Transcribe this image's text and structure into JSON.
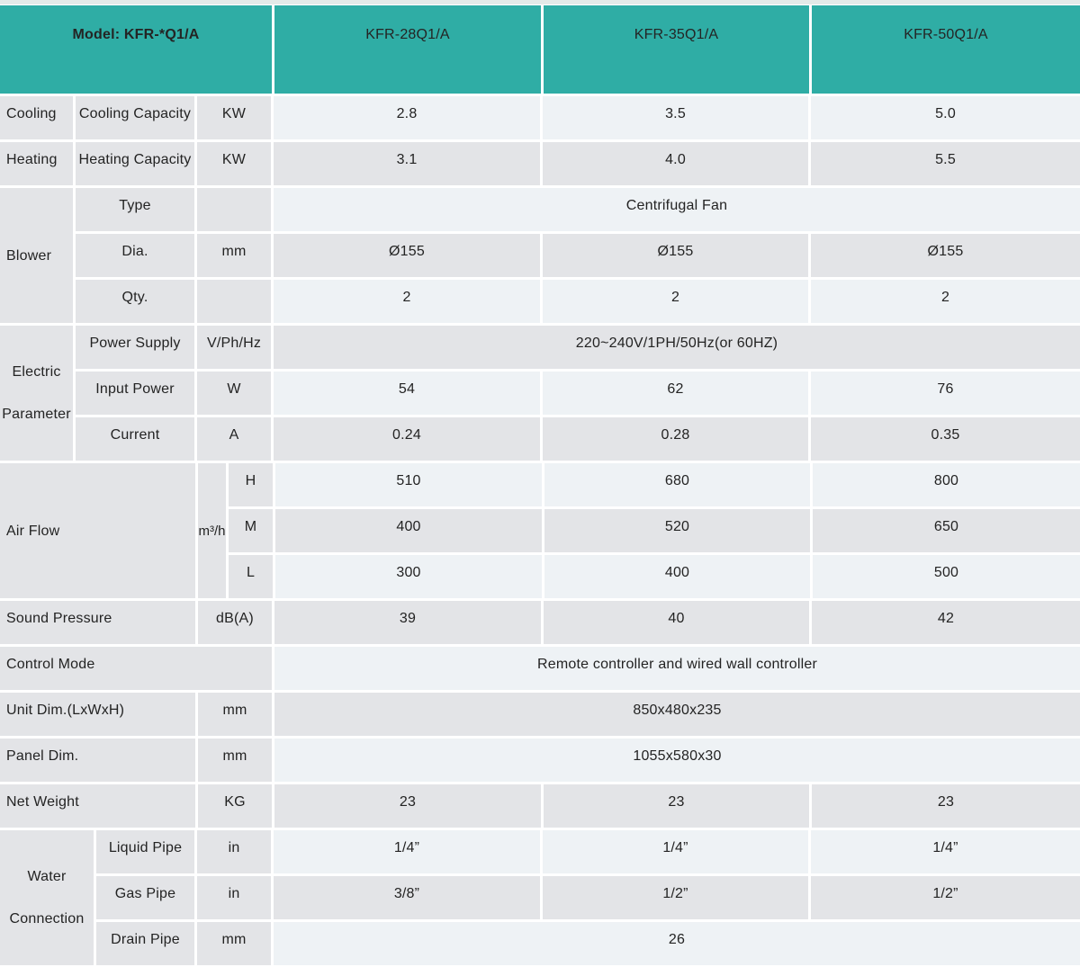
{
  "colors": {
    "teal": "#2fada5",
    "row_light": "#eef2f5",
    "row_gray": "#e3e4e7",
    "label_gray": "#e3e4e7",
    "text": "#232323",
    "top_strip": "#e3eae8"
  },
  "header": {
    "model_label": "Model: KFR-*Q1/A",
    "models": [
      "KFR-28Q1/A",
      "KFR-35Q1/A",
      "KFR-50Q1/A"
    ]
  },
  "sections": {
    "cooling": {
      "group": "Cooling",
      "sub": "Cooling Capacity",
      "unit": "KW",
      "values": [
        "2.8",
        "3.5",
        "5.0"
      ]
    },
    "heating": {
      "group": "Heating",
      "sub": "Heating Capacity",
      "unit": "KW",
      "values": [
        "3.1",
        "4.0",
        "5.5"
      ]
    },
    "blower": {
      "group": "Blower",
      "rows": [
        {
          "sub": "Type",
          "unit": "",
          "span_value": "Centrifugal Fan"
        },
        {
          "sub": "Dia.",
          "unit": "mm",
          "values": [
            "Ø155",
            "Ø155",
            "Ø155"
          ]
        },
        {
          "sub": "Qty.",
          "unit": "",
          "values": [
            "2",
            "2",
            "2"
          ]
        }
      ]
    },
    "electric": {
      "group": "Electric Parameter",
      "rows": [
        {
          "sub": "Power Supply",
          "unit": "V/Ph/Hz",
          "span_value": "220~240V/1PH/50Hz(or 60HZ)"
        },
        {
          "sub": "Input Power",
          "unit": "W",
          "values": [
            "54",
            "62",
            "76"
          ]
        },
        {
          "sub": "Current",
          "unit": "A",
          "values": [
            "0.24",
            "0.28",
            "0.35"
          ]
        }
      ]
    },
    "airflow": {
      "group": "Air Flow",
      "unit": "m³/h",
      "rows": [
        {
          "level": "H",
          "values": [
            "510",
            "680",
            "800"
          ]
        },
        {
          "level": "M",
          "values": [
            "400",
            "520",
            "650"
          ]
        },
        {
          "level": "L",
          "values": [
            "300",
            "400",
            "500"
          ]
        }
      ]
    },
    "sound": {
      "label": "Sound Pressure",
      "unit": "dB(A)",
      "values": [
        "39",
        "40",
        "42"
      ]
    },
    "control": {
      "label": "Control Mode",
      "span_value": "Remote controller and wired wall controller"
    },
    "unit_dim": {
      "label": "Unit Dim.(LxWxH)",
      "unit": "mm",
      "span_value": "850x480x235"
    },
    "panel_dim": {
      "label": "Panel Dim.",
      "unit": "mm",
      "span_value": "1055x580x30"
    },
    "net_weight": {
      "label": "Net Weight",
      "unit": "KG",
      "values": [
        "23",
        "23",
        "23"
      ]
    },
    "water": {
      "group": "Water Connection",
      "rows": [
        {
          "sub": "Liquid Pipe",
          "unit": "in",
          "values": [
            "1/4”",
            "1/4”",
            "1/4”"
          ]
        },
        {
          "sub": "Gas Pipe",
          "unit": "in",
          "values": [
            "3/8”",
            "1/2”",
            "1/2”"
          ]
        },
        {
          "sub": "Drain Pipe",
          "unit": "mm",
          "span_value": "26"
        }
      ]
    }
  }
}
